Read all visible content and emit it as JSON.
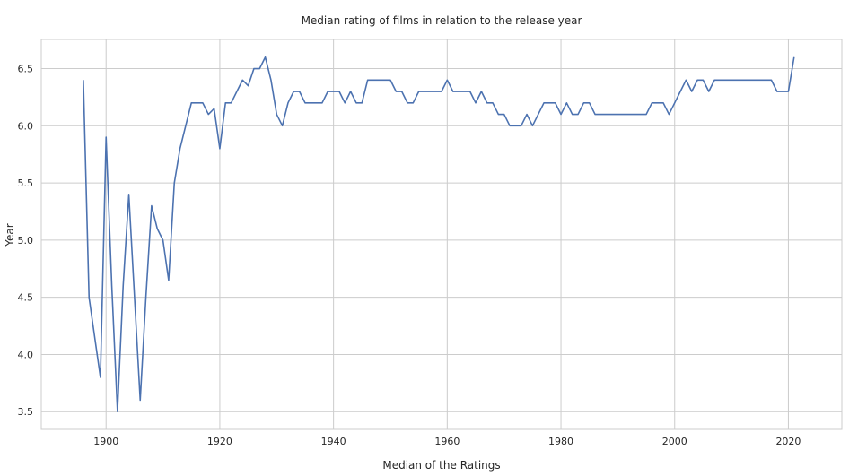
{
  "chart_data": {
    "type": "line",
    "title": "Median rating of films in relation to the release year",
    "xlabel": "Median of the Ratings",
    "ylabel": "Year",
    "xlim": [
      1888.6,
      2029.4
    ],
    "ylim": [
      3.345,
      6.755
    ],
    "xticks": [
      1900,
      1920,
      1940,
      1960,
      1980,
      2000,
      2020
    ],
    "yticks": [
      3.5,
      4.0,
      4.5,
      5.0,
      5.5,
      6.0,
      6.5
    ],
    "grid": true,
    "colors": {
      "line": "#4c72b0",
      "grid": "#cccccc",
      "axes": "#cccccc"
    },
    "series": [
      {
        "x": [
          1896,
          1897,
          1898,
          1899,
          1900,
          1901,
          1902,
          1903,
          1904,
          1905,
          1906,
          1907,
          1908,
          1909,
          1910,
          1911,
          1912,
          1913,
          1914,
          1915,
          1916,
          1917,
          1918,
          1919,
          1920,
          1921,
          1922,
          1923,
          1924,
          1925,
          1926,
          1927,
          1928,
          1929,
          1930,
          1931,
          1932,
          1933,
          1934,
          1935,
          1936,
          1937,
          1938,
          1939,
          1940,
          1941,
          1942,
          1943,
          1944,
          1945,
          1946,
          1947,
          1948,
          1949,
          1950,
          1951,
          1952,
          1953,
          1954,
          1955,
          1956,
          1957,
          1958,
          1959,
          1960,
          1961,
          1962,
          1963,
          1964,
          1965,
          1966,
          1967,
          1968,
          1969,
          1970,
          1971,
          1972,
          1973,
          1974,
          1975,
          1976,
          1977,
          1978,
          1979,
          1980,
          1981,
          1982,
          1983,
          1984,
          1985,
          1986,
          1987,
          1988,
          1989,
          1990,
          1991,
          1992,
          1993,
          1994,
          1995,
          1996,
          1997,
          1998,
          1999,
          2000,
          2001,
          2002,
          2003,
          2004,
          2005,
          2006,
          2007,
          2008,
          2009,
          2010,
          2011,
          2012,
          2013,
          2014,
          2015,
          2016,
          2017,
          2018,
          2019,
          2020,
          2021
        ],
        "y": [
          6.4,
          4.5,
          4.15,
          3.8,
          5.9,
          4.6,
          3.5,
          4.6,
          5.4,
          4.5,
          3.6,
          4.5,
          5.3,
          5.1,
          5.0,
          4.65,
          5.5,
          5.8,
          6.0,
          6.2,
          6.2,
          6.2,
          6.1,
          6.15,
          5.8,
          6.2,
          6.2,
          6.3,
          6.4,
          6.35,
          6.5,
          6.5,
          6.6,
          6.4,
          6.1,
          6.0,
          6.2,
          6.3,
          6.3,
          6.2,
          6.2,
          6.2,
          6.2,
          6.3,
          6.3,
          6.3,
          6.2,
          6.3,
          6.2,
          6.2,
          6.4,
          6.4,
          6.4,
          6.4,
          6.4,
          6.3,
          6.3,
          6.2,
          6.2,
          6.3,
          6.3,
          6.3,
          6.3,
          6.3,
          6.4,
          6.3,
          6.3,
          6.3,
          6.3,
          6.2,
          6.3,
          6.2,
          6.2,
          6.1,
          6.1,
          6.0,
          6.0,
          6.0,
          6.1,
          6.0,
          6.1,
          6.2,
          6.2,
          6.2,
          6.1,
          6.2,
          6.1,
          6.1,
          6.2,
          6.2,
          6.1,
          6.1,
          6.1,
          6.1,
          6.1,
          6.1,
          6.1,
          6.1,
          6.1,
          6.1,
          6.2,
          6.2,
          6.2,
          6.1,
          6.2,
          6.3,
          6.4,
          6.3,
          6.4,
          6.4,
          6.3,
          6.4,
          6.4,
          6.4,
          6.4,
          6.4,
          6.4,
          6.4,
          6.4,
          6.4,
          6.4,
          6.4,
          6.3,
          6.3,
          6.3,
          6.6
        ]
      }
    ]
  }
}
